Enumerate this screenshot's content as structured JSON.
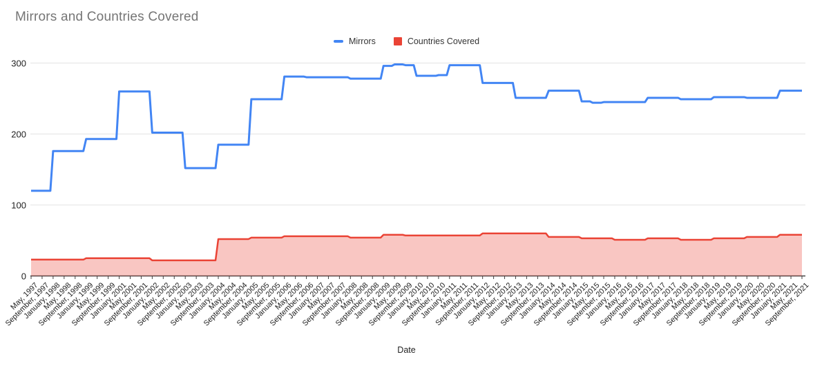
{
  "title": "Mirrors and Countries Covered",
  "legend": {
    "items": [
      {
        "label": "Mirrors",
        "color": "#4285F4",
        "marker": "line"
      },
      {
        "label": "Countries Covered",
        "color": "#EA4335",
        "marker": "square"
      }
    ]
  },
  "chart_data": {
    "type": "line",
    "title": "Mirrors and Countries Covered",
    "xlabel": "Date",
    "ylabel": "",
    "ylim": [
      0,
      300
    ],
    "y_ticks": [
      0,
      100,
      200,
      300
    ],
    "grid": true,
    "legend_position": "top-center",
    "x_labels": [
      "May, 1997",
      "September, 1997",
      "January, 1998",
      "May, 1998",
      "September, 1998",
      "January, 1999",
      "May, 1999",
      "September, 1999",
      "January, 2001",
      "May, 2001",
      "September, 2001",
      "January, 2002",
      "May, 2002",
      "September, 2002",
      "January, 2003",
      "May, 2003",
      "September, 2003",
      "January, 2004",
      "May, 2004",
      "September, 2004",
      "January, 2005",
      "May, 2005",
      "September, 2005",
      "January, 2006",
      "May, 2006",
      "September, 2006",
      "January, 2007",
      "May, 2007",
      "September, 2007",
      "January, 2008",
      "May, 2008",
      "September, 2008",
      "January, 2009",
      "May, 2009",
      "September, 2009",
      "January, 2010",
      "May, 2010",
      "September, 2010",
      "January, 2011",
      "May, 2011",
      "September, 2011",
      "January, 2012",
      "May, 2012",
      "September, 2012",
      "January, 2013",
      "May, 2013",
      "September, 2013",
      "January, 2014",
      "May, 2014",
      "September, 2014",
      "January, 2015",
      "May, 2015",
      "September, 2015",
      "January, 2016",
      "May, 2016",
      "September, 2016",
      "January, 2017",
      "May, 2017",
      "September, 2017",
      "January, 2018",
      "May, 2018",
      "September, 2018",
      "January, 2019",
      "May, 2019",
      "September, 2019",
      "January, 2020",
      "May, 2020",
      "September, 2020",
      "January, 2021",
      "May, 2021",
      "September, 2021"
    ],
    "series": [
      {
        "name": "Mirrors",
        "type": "line",
        "color": "#4285F4",
        "values": [
          120,
          120,
          176,
          176,
          176,
          193,
          193,
          193,
          260,
          260,
          260,
          202,
          202,
          202,
          152,
          152,
          152,
          185,
          185,
          185,
          249,
          249,
          249,
          281,
          281,
          280,
          280,
          280,
          280,
          278,
          278,
          278,
          296,
          298,
          297,
          282,
          282,
          283,
          297,
          297,
          297,
          272,
          272,
          272,
          251,
          251,
          251,
          261,
          261,
          261,
          246,
          244,
          245,
          245,
          245,
          245,
          251,
          251,
          251,
          249,
          249,
          249,
          252,
          252,
          252,
          251,
          251,
          251,
          261,
          261,
          261
        ]
      },
      {
        "name": "Countries Covered",
        "type": "area",
        "color": "#EA4335",
        "fill_opacity": 0.3,
        "values": [
          23,
          23,
          23,
          23,
          23,
          25,
          25,
          25,
          25,
          25,
          25,
          22,
          22,
          22,
          22,
          22,
          22,
          52,
          52,
          52,
          54,
          54,
          54,
          56,
          56,
          56,
          56,
          56,
          56,
          54,
          54,
          54,
          58,
          58,
          57,
          57,
          57,
          57,
          57,
          57,
          57,
          60,
          60,
          60,
          60,
          60,
          60,
          55,
          55,
          55,
          53,
          53,
          53,
          51,
          51,
          51,
          53,
          53,
          53,
          51,
          51,
          51,
          53,
          53,
          53,
          55,
          55,
          55,
          58,
          58,
          58
        ]
      }
    ]
  }
}
